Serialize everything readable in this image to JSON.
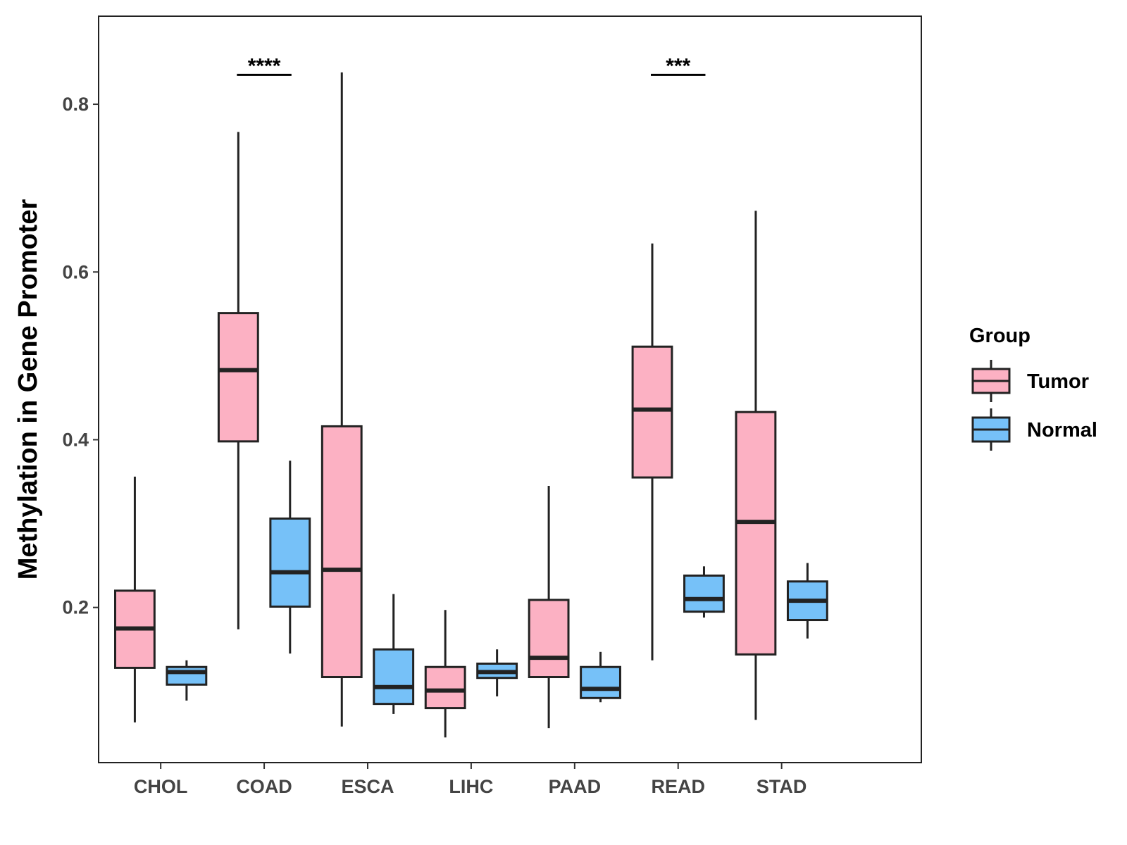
{
  "chart_data": {
    "type": "boxplot",
    "title": "",
    "xlabel": "",
    "ylabel": "Methylation in Gene Promoter",
    "ylim": [
      0.015,
      0.905
    ],
    "yticks": [
      0.2,
      0.4,
      0.6,
      0.8
    ],
    "ytick_labels": [
      "0.2",
      "0.4",
      "0.6",
      "0.8"
    ],
    "grid": false,
    "legend": {
      "title": "Group",
      "position": "right"
    },
    "categories": [
      "CHOL",
      "COAD",
      "ESCA",
      "LIHC",
      "PAAD",
      "READ",
      "STAD"
    ],
    "series": [
      {
        "name": "Tumor",
        "color": "#FCB1C3",
        "boxes": [
          {
            "min": 0.063,
            "q1": 0.128,
            "median": 0.175,
            "q3": 0.22,
            "max": 0.356
          },
          {
            "min": 0.174,
            "q1": 0.398,
            "median": 0.483,
            "q3": 0.551,
            "max": 0.767
          },
          {
            "min": 0.058,
            "q1": 0.117,
            "median": 0.245,
            "q3": 0.416,
            "max": 0.838
          },
          {
            "min": 0.045,
            "q1": 0.08,
            "median": 0.101,
            "q3": 0.129,
            "max": 0.197
          },
          {
            "min": 0.056,
            "q1": 0.117,
            "median": 0.14,
            "q3": 0.209,
            "max": 0.345
          },
          {
            "min": 0.137,
            "q1": 0.355,
            "median": 0.436,
            "q3": 0.511,
            "max": 0.634
          },
          {
            "min": 0.066,
            "q1": 0.144,
            "median": 0.302,
            "q3": 0.433,
            "max": 0.673
          }
        ]
      },
      {
        "name": "Normal",
        "color": "#76C1F8",
        "boxes": [
          {
            "min": 0.089,
            "q1": 0.108,
            "median": 0.123,
            "q3": 0.129,
            "max": 0.137
          },
          {
            "min": 0.145,
            "q1": 0.201,
            "median": 0.242,
            "q3": 0.306,
            "max": 0.375
          },
          {
            "min": 0.073,
            "q1": 0.085,
            "median": 0.105,
            "q3": 0.15,
            "max": 0.216
          },
          {
            "min": 0.094,
            "q1": 0.116,
            "median": 0.123,
            "q3": 0.133,
            "max": 0.15
          },
          {
            "min": 0.087,
            "q1": 0.092,
            "median": 0.103,
            "q3": 0.129,
            "max": 0.147
          },
          {
            "min": 0.188,
            "q1": 0.195,
            "median": 0.21,
            "q3": 0.238,
            "max": 0.249
          },
          {
            "min": 0.163,
            "q1": 0.185,
            "median": 0.208,
            "q3": 0.231,
            "max": 0.253
          }
        ]
      }
    ],
    "annotations": [
      {
        "category": "COAD",
        "label": "****",
        "y": 0.835
      },
      {
        "category": "READ",
        "label": "***",
        "y": 0.835
      }
    ]
  }
}
